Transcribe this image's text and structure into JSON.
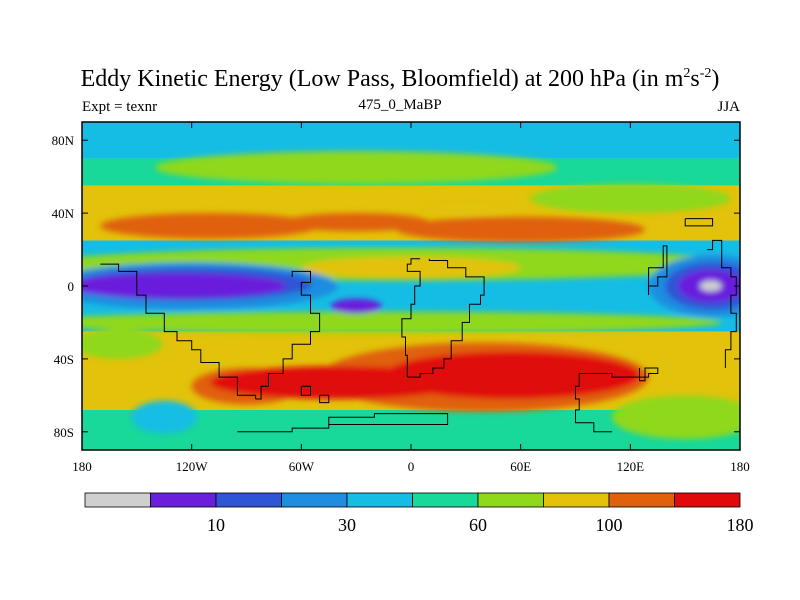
{
  "chart_data": {
    "type": "heatmap",
    "title_parts": {
      "main": "Eddy Kinetic Energy (Low Pass, Bloomfield) at 200 hPa (in m",
      "sup1": "2",
      "mid": "s",
      "sup2": "-2",
      "end": ")"
    },
    "subtitle_center": "475_0_MaBP",
    "subtitle_left": "Expt = texnr",
    "subtitle_right": "JJA",
    "x_ticks": [
      {
        "value": -180,
        "label": "180"
      },
      {
        "value": -120,
        "label": "120W"
      },
      {
        "value": -60,
        "label": "60W"
      },
      {
        "value": 0,
        "label": "0"
      },
      {
        "value": 60,
        "label": "60E"
      },
      {
        "value": 120,
        "label": "120E"
      },
      {
        "value": 180,
        "label": "180"
      }
    ],
    "y_ticks": [
      {
        "value": 80,
        "label": "80N"
      },
      {
        "value": 40,
        "label": "40N"
      },
      {
        "value": 0,
        "label": "0"
      },
      {
        "value": -40,
        "label": "40S"
      },
      {
        "value": -80,
        "label": "80S"
      }
    ],
    "xlim": [
      -180,
      180
    ],
    "ylim": [
      -90,
      90
    ],
    "levels": [
      5,
      10,
      20,
      30,
      45,
      60,
      80,
      100,
      140,
      180
    ],
    "colorbar_labels": [
      {
        "level_index": 1,
        "label": "10"
      },
      {
        "level_index": 3,
        "label": "30"
      },
      {
        "level_index": 5,
        "label": "60"
      },
      {
        "level_index": 7,
        "label": "100"
      },
      {
        "level_index": 9,
        "label": "180"
      }
    ],
    "colors": [
      "#cfcfcf",
      "#6a1fdc",
      "#2f55d6",
      "#1f8de0",
      "#15bde4",
      "#18d89a",
      "#8fd81a",
      "#e2c20a",
      "#e0600c",
      "#e00a0a"
    ],
    "bands": [
      {
        "name": "band-top",
        "lat_from": 90,
        "lat_to": 70,
        "color_index": 4
      },
      {
        "name": "band-north-mid",
        "lat_from": 70,
        "lat_to": 55,
        "color_index": 5
      },
      {
        "name": "band-north-yellow",
        "lat_from": 55,
        "lat_to": 25,
        "color_index": 7
      },
      {
        "name": "band-tropics",
        "lat_from": 25,
        "lat_to": -25,
        "color_index": 4
      },
      {
        "name": "band-south-yellow",
        "lat_from": -25,
        "lat_to": -68,
        "color_index": 7
      },
      {
        "name": "band-south-high",
        "lat_from": -68,
        "lat_to": -90,
        "color_index": 5
      }
    ],
    "features": [
      {
        "name": "north-green-patch",
        "lon": -30,
        "lat": 65,
        "rx": 110,
        "ry": 9,
        "color_index": 6
      },
      {
        "name": "north-green-patch-east",
        "lon": 120,
        "lat": 48,
        "rx": 55,
        "ry": 8,
        "color_index": 6
      },
      {
        "name": "north-jet-west",
        "lon": -110,
        "lat": 33,
        "rx": 60,
        "ry": 7,
        "color_index": 8
      },
      {
        "name": "north-jet-central",
        "lon": -30,
        "lat": 35,
        "rx": 40,
        "ry": 5,
        "color_index": 8
      },
      {
        "name": "north-jet-east",
        "lon": 60,
        "lat": 31,
        "rx": 68,
        "ry": 7,
        "color_index": 8
      },
      {
        "name": "north-yellow-gap",
        "lon": 30,
        "lat": 42,
        "rx": 25,
        "ry": 3,
        "color_index": 7
      },
      {
        "name": "tropics-green-north",
        "lon": -10,
        "lat": 12,
        "rx": 190,
        "ry": 9,
        "color_index": 6
      },
      {
        "name": "tropics-yellow-center",
        "lon": 0,
        "lat": 10,
        "rx": 60,
        "ry": 6,
        "color_index": 7
      },
      {
        "name": "tropics-green-south",
        "lon": -20,
        "lat": -20,
        "rx": 190,
        "ry": 6,
        "color_index": 6
      },
      {
        "name": "tropics-blue-west",
        "lon": -120,
        "lat": 0,
        "rx": 80,
        "ry": 13,
        "color_index": 3
      },
      {
        "name": "tropics-darkblue-west",
        "lon": -120,
        "lat": 1,
        "rx": 66,
        "ry": 9,
        "color_index": 2
      },
      {
        "name": "tropics-purple-west",
        "lon": -128,
        "lat": 0,
        "rx": 60,
        "ry": 7,
        "color_index": 1
      },
      {
        "name": "tropics-purple-atlantic",
        "lon": -30,
        "lat": -11,
        "rx": 14,
        "ry": 4,
        "color_index": 1
      },
      {
        "name": "tropics-blue-east",
        "lon": 165,
        "lat": 0,
        "rx": 35,
        "ry": 17,
        "color_index": 3
      },
      {
        "name": "tropics-darkblue-east",
        "lon": 165,
        "lat": 0,
        "rx": 26,
        "ry": 13,
        "color_index": 2
      },
      {
        "name": "tropics-purple-east",
        "lon": 164,
        "lat": 0,
        "rx": 18,
        "ry": 9,
        "color_index": 1
      },
      {
        "name": "tropics-gray-core",
        "lon": 164,
        "lat": 0,
        "rx": 6,
        "ry": 3,
        "color_index": 0
      },
      {
        "name": "south-green-west",
        "lon": -160,
        "lat": -32,
        "rx": 24,
        "ry": 8,
        "color_index": 6
      },
      {
        "name": "south-jet-west",
        "lon": -90,
        "lat": -55,
        "rx": 30,
        "ry": 10,
        "color_index": 8
      },
      {
        "name": "south-jet-main",
        "lon": 40,
        "lat": -50,
        "rx": 90,
        "ry": 19,
        "color_index": 8
      },
      {
        "name": "south-jet-core",
        "lon": -40,
        "lat": -53,
        "rx": 70,
        "ry": 9,
        "color_index": 9
      },
      {
        "name": "south-jet-core-east",
        "lon": 55,
        "lat": -49,
        "rx": 70,
        "ry": 13,
        "color_index": 9
      },
      {
        "name": "south-cyan-southwest",
        "lon": -135,
        "lat": -72,
        "rx": 18,
        "ry": 9,
        "color_index": 4
      },
      {
        "name": "south-green-east",
        "lon": 150,
        "lat": -72,
        "rx": 40,
        "ry": 12,
        "color_index": 6
      }
    ],
    "coastlines": [
      {
        "name": "coast-south-america-west",
        "points": [
          [
            -170,
            12
          ],
          [
            -160,
            12
          ],
          [
            -160,
            8
          ],
          [
            -150,
            5
          ],
          [
            -150,
            -5
          ],
          [
            -145,
            -15
          ],
          [
            -140,
            -15
          ],
          [
            -135,
            -25
          ],
          [
            -128,
            -30
          ],
          [
            -120,
            -35
          ],
          [
            -115,
            -42
          ],
          [
            -105,
            -50
          ],
          [
            -95,
            -60
          ],
          [
            -85,
            -62
          ]
        ]
      },
      {
        "name": "coast-south-america-east",
        "points": [
          [
            -85,
            -62
          ],
          [
            -82,
            -55
          ],
          [
            -78,
            -48
          ],
          [
            -70,
            -40
          ],
          [
            -65,
            -32
          ],
          [
            -55,
            -25
          ],
          [
            -50,
            -15
          ],
          [
            -55,
            -5
          ],
          [
            -60,
            2
          ],
          [
            -55,
            8
          ],
          [
            -65,
            5
          ]
        ]
      },
      {
        "name": "coast-africa-west",
        "points": [
          [
            5,
            15
          ],
          [
            0,
            12
          ],
          [
            -2,
            8
          ],
          [
            5,
            0
          ],
          [
            2,
            -10
          ],
          [
            0,
            -18
          ],
          [
            -5,
            -28
          ],
          [
            -3,
            -38
          ],
          [
            -2,
            -50
          ]
        ]
      },
      {
        "name": "coast-africa-east",
        "points": [
          [
            -2,
            -50
          ],
          [
            5,
            -48
          ],
          [
            12,
            -45
          ],
          [
            18,
            -40
          ],
          [
            22,
            -30
          ],
          [
            28,
            -20
          ],
          [
            32,
            -10
          ],
          [
            38,
            -5
          ],
          [
            40,
            5
          ],
          [
            30,
            10
          ],
          [
            20,
            14
          ],
          [
            10,
            15
          ]
        ]
      },
      {
        "name": "coast-australia-west",
        "points": [
          [
            95,
            -48
          ],
          [
            92,
            -55
          ],
          [
            90,
            -62
          ],
          [
            92,
            -68
          ],
          [
            90,
            -75
          ],
          [
            100,
            -80
          ],
          [
            110,
            -80
          ]
        ]
      },
      {
        "name": "coast-australia-east",
        "points": [
          [
            95,
            -48
          ],
          [
            110,
            -50
          ],
          [
            130,
            -48
          ],
          [
            135,
            -45
          ],
          [
            128,
            -52
          ],
          [
            125,
            -45
          ]
        ]
      },
      {
        "name": "coast-antarctic-shelf",
        "points": [
          [
            -95,
            -80
          ],
          [
            -80,
            -80
          ],
          [
            -65,
            -78
          ],
          [
            -45,
            -72
          ],
          [
            -20,
            -70
          ],
          [
            10,
            -70
          ],
          [
            20,
            -72
          ],
          [
            20,
            -76
          ],
          [
            -20,
            -76
          ],
          [
            -45,
            -74
          ]
        ]
      },
      {
        "name": "coast-pacific-islands",
        "points": [
          [
            130,
            -5
          ],
          [
            130,
            10
          ],
          [
            135,
            10
          ],
          [
            138,
            22
          ],
          [
            140,
            20
          ],
          [
            140,
            5
          ],
          [
            135,
            0
          ],
          [
            130,
            -5
          ]
        ]
      },
      {
        "name": "coast-east-pacific",
        "points": [
          [
            162,
            20
          ],
          [
            165,
            25
          ],
          [
            170,
            25
          ],
          [
            170,
            10
          ],
          [
            175,
            5
          ],
          [
            178,
            -5
          ],
          [
            175,
            -15
          ],
          [
            178,
            -25
          ],
          [
            175,
            -35
          ],
          [
            172,
            -45
          ]
        ]
      },
      {
        "name": "coast-north-box",
        "points": [
          [
            150,
            37
          ],
          [
            165,
            37
          ],
          [
            165,
            33
          ],
          [
            150,
            33
          ],
          [
            150,
            37
          ]
        ]
      },
      {
        "name": "coast-small-island",
        "points": [
          [
            -50,
            -60
          ],
          [
            -45,
            -60
          ],
          [
            -45,
            -64
          ],
          [
            -50,
            -64
          ],
          [
            -50,
            -60
          ]
        ]
      },
      {
        "name": "coast-small-island-2",
        "points": [
          [
            -60,
            -55
          ],
          [
            -55,
            -55
          ],
          [
            -55,
            -60
          ],
          [
            -60,
            -60
          ],
          [
            -60,
            -55
          ]
        ]
      }
    ]
  }
}
